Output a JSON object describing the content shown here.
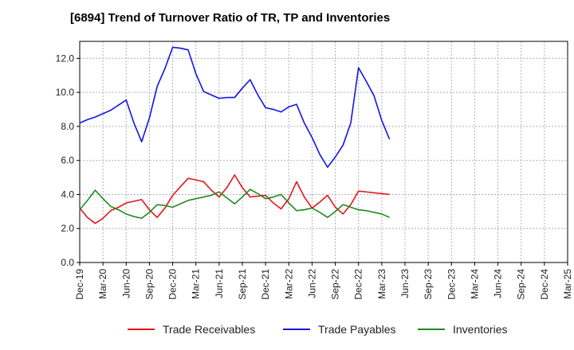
{
  "chart_data": {
    "type": "line",
    "title": "[6894]  Trend of Turnover Ratio of TR, TP and Inventories",
    "xlabel": "",
    "ylabel": "",
    "ylim": [
      0,
      13
    ],
    "yticks": [
      "0.0",
      "2.0",
      "4.0",
      "6.0",
      "8.0",
      "10.0",
      "12.0"
    ],
    "ytick_values": [
      0,
      2,
      4,
      6,
      8,
      10,
      12
    ],
    "x_labels": [
      "Dec-19",
      "Mar-20",
      "Jun-20",
      "Sep-20",
      "Dec-20",
      "Mar-21",
      "Jun-21",
      "Sep-21",
      "Dec-21",
      "Mar-22",
      "Jun-22",
      "Sep-22",
      "Dec-22",
      "Mar-23",
      "Jun-23",
      "Sep-23",
      "Dec-23",
      "Mar-24",
      "Jun-24",
      "Sep-24",
      "Dec-24",
      "Mar-25"
    ],
    "grid": true,
    "legend_position": "bottom",
    "series": [
      {
        "name": "Trade Receivables",
        "color": "#e8141c",
        "values": [
          3.2,
          2.65,
          2.3,
          2.6,
          3.05,
          3.25,
          3.5,
          3.6,
          3.7,
          3.1,
          2.65,
          3.2,
          3.95,
          4.45,
          4.95,
          4.85,
          4.75,
          4.25,
          3.85,
          4.4,
          5.15,
          4.4,
          3.85,
          3.9,
          3.95,
          3.5,
          3.15,
          3.75,
          4.75,
          3.85,
          3.2,
          3.55,
          3.95,
          3.25,
          2.85,
          3.4,
          4.2,
          4.15,
          4.1,
          4.05,
          4.0
        ]
      },
      {
        "name": "Trade Payables",
        "color": "#1414e6",
        "values": [
          8.2,
          8.4,
          8.55,
          8.75,
          8.95,
          9.25,
          9.55,
          8.2,
          7.1,
          8.5,
          10.35,
          11.4,
          12.65,
          12.6,
          12.5,
          11.1,
          10.05,
          9.85,
          9.65,
          9.7,
          9.7,
          10.25,
          10.75,
          9.85,
          9.1,
          9.0,
          8.85,
          9.15,
          9.3,
          8.2,
          7.35,
          6.35,
          5.6,
          6.2,
          6.9,
          8.2,
          11.45,
          10.65,
          9.8,
          8.35,
          7.25
        ]
      },
      {
        "name": "Inventories",
        "color": "#1f8a1f",
        "values": [
          3.1,
          3.65,
          4.25,
          3.75,
          3.3,
          3.1,
          2.85,
          2.7,
          2.6,
          2.95,
          3.4,
          3.35,
          3.25,
          3.45,
          3.65,
          3.75,
          3.85,
          3.95,
          4.15,
          3.8,
          3.45,
          3.85,
          4.3,
          4.05,
          3.75,
          3.85,
          4.0,
          3.5,
          3.05,
          3.1,
          3.2,
          2.95,
          2.65,
          3.0,
          3.4,
          3.25,
          3.1,
          3.05,
          2.95,
          2.85,
          2.65
        ]
      }
    ]
  }
}
